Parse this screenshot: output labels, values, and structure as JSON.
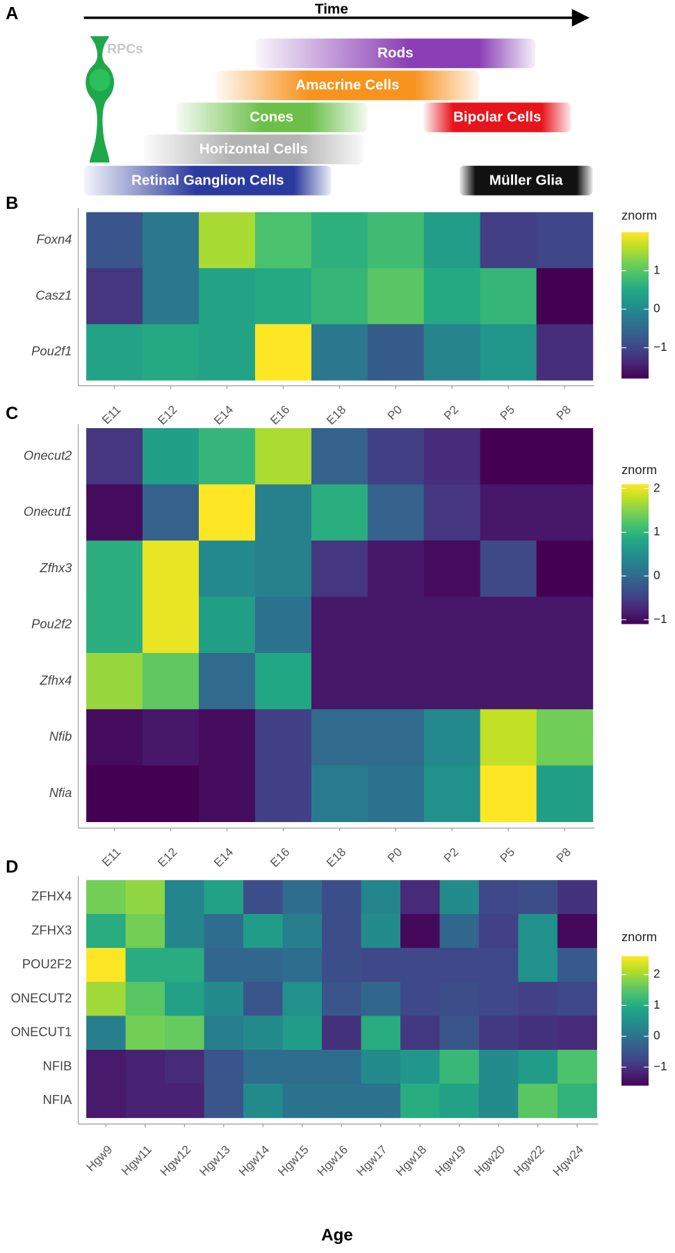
{
  "panel_labels": [
    "A",
    "B",
    "C",
    "D"
  ],
  "timeline": {
    "axis_label": "Time",
    "progenitor": "RPCs",
    "cell_types": [
      {
        "name": "Rods",
        "color": "#8b3fb5"
      },
      {
        "name": "Amacrine Cells",
        "color": "#f7931e"
      },
      {
        "name": "Cones",
        "color": "#6cc04a"
      },
      {
        "name": "Bipolar Cells",
        "color": "#e8141b"
      },
      {
        "name": "Horizontal Cells",
        "color": "#b3b3b3"
      },
      {
        "name": "Retinal Ganglion Cells",
        "color": "#2b3a9e"
      },
      {
        "name": "Müller Glia",
        "color": "#111111"
      }
    ]
  },
  "chart_data": [
    {
      "type": "heatmap",
      "colormap": "viridis",
      "row_label_style": "italic",
      "rows": [
        "Foxn4",
        "Casz1",
        "Pou2f1"
      ],
      "columns": [
        "E11",
        "E12",
        "E14",
        "E16",
        "E18",
        "P0",
        "P2",
        "P5",
        "P8"
      ],
      "values": [
        [
          -0.8,
          -0.3,
          1.5,
          0.9,
          0.6,
          0.8,
          0.3,
          -1.1,
          -1.0
        ],
        [
          -1.2,
          -0.3,
          0.4,
          0.5,
          0.7,
          1.0,
          0.5,
          0.7,
          -1.8
        ],
        [
          0.4,
          0.5,
          0.4,
          2.0,
          -0.3,
          -0.7,
          -0.1,
          0.2,
          -1.3
        ]
      ],
      "colorbar_title": "znorm",
      "colorbar_lim": [
        -1.8,
        2.0
      ],
      "colorbar_ticks": [
        {
          "value": -1,
          "label": "−1"
        },
        0,
        1
      ]
    },
    {
      "type": "heatmap",
      "colormap": "viridis",
      "row_label_style": "italic",
      "rows": [
        "Onecut2",
        "Onecut1",
        "Zfhx3",
        "Pou2f2",
        "Zfhx4",
        "Nfib",
        "Nfia"
      ],
      "columns": [
        "E11",
        "E12",
        "E14",
        "E16",
        "E18",
        "P0",
        "P2",
        "P5",
        "P8"
      ],
      "values": [
        [
          -0.6,
          0.7,
          1.0,
          1.7,
          -0.1,
          -0.5,
          -0.7,
          -1.1,
          -1.1
        ],
        [
          -1.0,
          -0.1,
          2.1,
          0.3,
          0.9,
          -0.1,
          -0.6,
          -0.9,
          -0.9
        ],
        [
          0.9,
          2.0,
          0.4,
          0.3,
          -0.6,
          -0.9,
          -1.0,
          -0.4,
          -1.1
        ],
        [
          0.9,
          2.0,
          0.7,
          0.1,
          -0.9,
          -0.9,
          -0.9,
          -0.9,
          -0.9
        ],
        [
          1.6,
          1.3,
          0.0,
          0.8,
          -0.9,
          -0.9,
          -0.9,
          -0.9,
          -0.9
        ],
        [
          -1.0,
          -0.9,
          -1.0,
          -0.5,
          0.0,
          0.0,
          0.4,
          1.8,
          1.4
        ],
        [
          -1.1,
          -1.1,
          -1.0,
          -0.5,
          0.2,
          0.1,
          0.5,
          2.1,
          0.7
        ]
      ],
      "colorbar_title": "znorm",
      "colorbar_lim": [
        -1.1,
        2.1
      ],
      "colorbar_ticks": [
        {
          "value": -1,
          "label": "−1"
        },
        0,
        1,
        2
      ]
    },
    {
      "type": "heatmap",
      "colormap": "viridis",
      "row_label_style": "normal",
      "rows": [
        "ZFHX4",
        "ZFHX3",
        "POU2F2",
        "ONECUT2",
        "ONECUT1",
        "NFIB",
        "NFIA"
      ],
      "columns": [
        "Hgw9",
        "Hgw11",
        "Hgw12",
        "Hgw13",
        "Hgw14",
        "Hgw15",
        "Hgw16",
        "Hgw17",
        "Hgw18",
        "Hgw19",
        "Hgw20",
        "Hgw22",
        "Hgw24"
      ],
      "values": [
        [
          1.7,
          1.9,
          0.3,
          0.8,
          -0.6,
          -0.1,
          -0.6,
          0.3,
          -1.1,
          0.4,
          -0.7,
          -0.6,
          -1.0
        ],
        [
          1.0,
          1.7,
          0.3,
          -0.1,
          0.7,
          0.2,
          -0.6,
          0.4,
          -1.5,
          -0.2,
          -0.8,
          0.5,
          -1.5
        ],
        [
          2.6,
          1.0,
          1.0,
          -0.2,
          -0.2,
          -0.1,
          -0.6,
          -0.7,
          -0.7,
          -0.7,
          -0.7,
          0.5,
          -0.4
        ],
        [
          2.0,
          1.5,
          0.8,
          0.4,
          -0.5,
          0.5,
          -0.5,
          -0.2,
          -0.7,
          -0.6,
          -0.7,
          -0.8,
          -0.7
        ],
        [
          0.2,
          1.7,
          1.6,
          0.2,
          0.4,
          0.7,
          -1.0,
          1.0,
          -0.9,
          -0.5,
          -0.9,
          -1.0,
          -1.1
        ],
        [
          -1.3,
          -1.2,
          -1.1,
          -0.5,
          -0.1,
          -0.1,
          -0.1,
          0.4,
          0.6,
          1.2,
          0.4,
          0.7,
          1.4
        ],
        [
          -1.3,
          -1.2,
          -1.2,
          -0.5,
          0.4,
          0.0,
          0.0,
          0.0,
          1.0,
          0.8,
          0.4,
          1.5,
          1.1
        ]
      ],
      "colorbar_title": "znorm",
      "colorbar_lim": [
        -1.6,
        2.6
      ],
      "colorbar_ticks": [
        {
          "value": -1,
          "label": "−1"
        },
        0,
        1,
        2
      ],
      "xlabel": "Age"
    }
  ]
}
